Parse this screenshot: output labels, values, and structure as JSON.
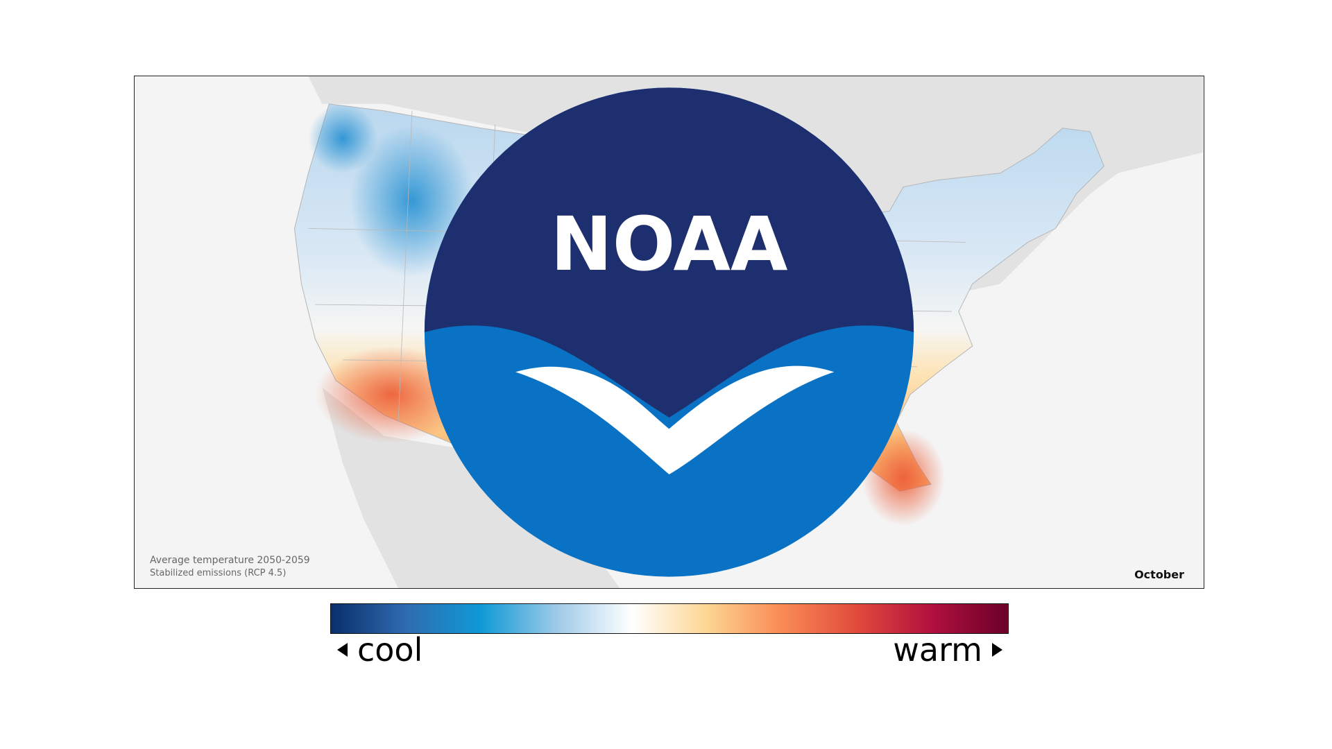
{
  "map": {
    "caption_line1": "Average temperature 2050-2059",
    "caption_line2": "Stabilized emissions (RCP 4.5)",
    "month": "October",
    "logo_text": "NOAA",
    "logo_icon": "noaa-logo-icon"
  },
  "legend": {
    "cool_label": "cool",
    "warm_label": "warm",
    "gradient_colors": [
      "#08306b",
      "#2f6bb0",
      "#0f9ad6",
      "#9ecae8",
      "#ffffff",
      "#fdd592",
      "#f98a55",
      "#e04a3c",
      "#b0103e",
      "#6b0028"
    ]
  },
  "colors": {
    "land_background": "#e2e2e2",
    "ocean_background": "#f4f4f4",
    "cool": "#1a8bd0",
    "warm": "#f26a3a"
  }
}
